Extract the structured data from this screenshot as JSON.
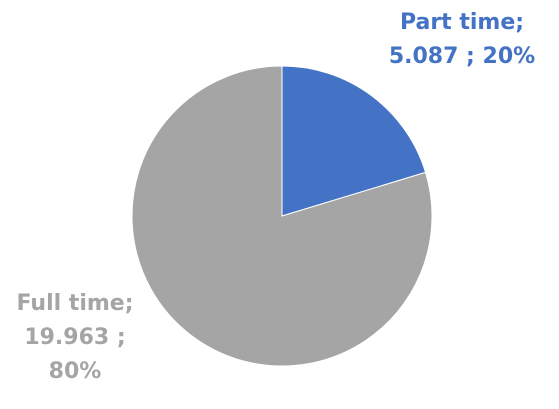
{
  "chart_data": {
    "type": "pie",
    "slices": [
      {
        "name": "Part time",
        "value": 5.087,
        "percent": "20%",
        "color": "#4472C4",
        "label_lines": [
          "Part time;",
          "5.087 ; 20%"
        ]
      },
      {
        "name": "Full time",
        "value": 19.963,
        "percent": "80%",
        "color": "#A5A5A5",
        "label_lines": [
          "Full time;",
          "19.963 ;",
          "80%"
        ]
      }
    ],
    "start_angle_deg": 0,
    "direction": "clockwise"
  }
}
